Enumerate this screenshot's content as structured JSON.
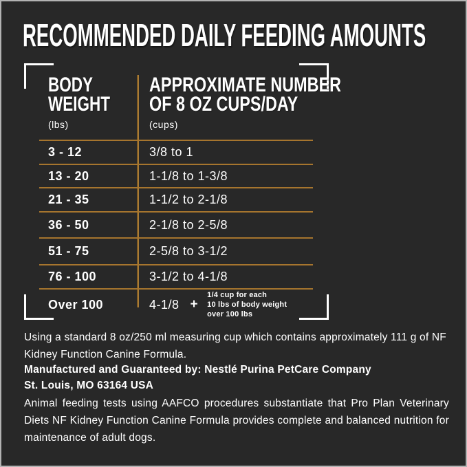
{
  "colors": {
    "background": "#282828",
    "frame_border": "#b3b3b3",
    "divider_gold": "#a6752e",
    "text": "#ffffff"
  },
  "title": "RECOMMENDED DAILY FEEDING AMOUNTS",
  "table": {
    "col1_header_line1": "BODY",
    "col1_header_line2": "WEIGHT",
    "col1_header_unit": "(lbs)",
    "col2_header_line1": "APPROXIMATE NUMBER",
    "col2_header_line2": "OF 8 OZ CUPS/DAY",
    "col2_header_unit": "(cups)",
    "rows": [
      {
        "weight": "3 - 12",
        "cups": "3/8 to 1"
      },
      {
        "weight": "13 - 20",
        "cups": "1-1/8 to 1-3/8"
      },
      {
        "weight": "21 - 35",
        "cups": "1-1/2 to 2-1/8"
      },
      {
        "weight": "36 - 50",
        "cups": "2-1/8 to 2-5/8"
      },
      {
        "weight": "51 - 75",
        "cups": "2-5/8 to 3-1/2"
      },
      {
        "weight": "76 - 100",
        "cups": "3-1/2 to 4-1/8"
      },
      {
        "weight": "Over 100",
        "cups": "4-1/8",
        "plus": "+",
        "note_lines": [
          "1/4 cup for each",
          "10 lbs of body weight",
          "over 100 lbs"
        ]
      }
    ]
  },
  "footnotes": {
    "measuring_cup": "Using a standard 8 oz/250 ml measuring cup which contains approximately 111 g of NF Kidney Function Canine Formula.",
    "manufacturer_line1": "Manufactured and Guaranteed by: Nestlé Purina PetCare Company",
    "manufacturer_line2": "St. Louis, MO 63164 USA",
    "aafco": "Animal feeding tests using AAFCO procedures substantiate that Pro Plan Veterinary Diets NF Kidney Function Canine Formula provides complete and balanced nutrition for maintenance of adult dogs."
  }
}
